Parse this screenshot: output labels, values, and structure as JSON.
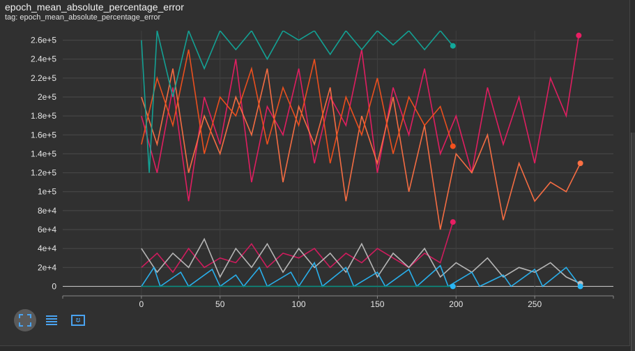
{
  "header": {
    "title": "epoch_mean_absolute_percentage_error",
    "tag": "tag: epoch_mean_absolute_percentage_error"
  },
  "toolbar": {
    "buttons": [
      {
        "name": "fit-domain-button",
        "icon": "fullscreen-icon"
      },
      {
        "name": "toggle-log-button",
        "icon": "list-icon"
      },
      {
        "name": "select-region-button",
        "icon": "dashed-rect-icon"
      }
    ]
  },
  "chart_data": {
    "type": "line",
    "title": "",
    "xlabel": "",
    "ylabel": "",
    "xlim": [
      -50,
      300
    ],
    "ylim": [
      -10000,
      270000
    ],
    "x_ticks": [
      0,
      50,
      100,
      150,
      200,
      250
    ],
    "x_tick_labels": [
      "0",
      "50",
      "100",
      "150",
      "200",
      "250"
    ],
    "y_ticks": [
      0,
      20000,
      40000,
      60000,
      80000,
      100000,
      120000,
      140000,
      160000,
      180000,
      200000,
      220000,
      240000,
      260000
    ],
    "y_tick_labels": [
      "0",
      "2e+4",
      "4e+4",
      "6e+4",
      "8e+4",
      "1e+5",
      "1.2e+5",
      "1.4e+5",
      "1.6e+5",
      "1.8e+5",
      "2e+5",
      "2.2e+5",
      "2.4e+5",
      "2.6e+5"
    ],
    "grid": true,
    "series": [
      {
        "color": "#e91e63",
        "points": [
          [
            0,
            180000
          ],
          [
            10,
            120000
          ],
          [
            20,
            210000
          ],
          [
            30,
            90000
          ],
          [
            40,
            200000
          ],
          [
            50,
            150000
          ],
          [
            60,
            240000
          ],
          [
            70,
            110000
          ],
          [
            80,
            190000
          ],
          [
            90,
            160000
          ],
          [
            100,
            230000
          ],
          [
            110,
            130000
          ],
          [
            120,
            200000
          ],
          [
            130,
            170000
          ],
          [
            140,
            250000
          ],
          [
            150,
            120000
          ],
          [
            160,
            210000
          ],
          [
            170,
            160000
          ],
          [
            180,
            230000
          ],
          [
            190,
            140000
          ],
          [
            200,
            180000
          ],
          [
            210,
            120000
          ],
          [
            220,
            210000
          ],
          [
            230,
            150000
          ],
          [
            240,
            200000
          ],
          [
            250,
            130000
          ],
          [
            260,
            220000
          ],
          [
            270,
            180000
          ],
          [
            278,
            265000
          ]
        ]
      },
      {
        "color": "#ff7043",
        "points": [
          [
            0,
            200000
          ],
          [
            10,
            150000
          ],
          [
            20,
            230000
          ],
          [
            30,
            120000
          ],
          [
            40,
            180000
          ],
          [
            50,
            140000
          ],
          [
            60,
            200000
          ],
          [
            70,
            160000
          ],
          [
            80,
            230000
          ],
          [
            90,
            110000
          ],
          [
            100,
            190000
          ],
          [
            110,
            150000
          ],
          [
            120,
            210000
          ],
          [
            130,
            90000
          ],
          [
            140,
            180000
          ],
          [
            150,
            130000
          ],
          [
            160,
            200000
          ],
          [
            170,
            100000
          ],
          [
            180,
            170000
          ],
          [
            190,
            60000
          ],
          [
            200,
            140000
          ],
          [
            210,
            120000
          ],
          [
            220,
            160000
          ],
          [
            230,
            70000
          ],
          [
            240,
            130000
          ],
          [
            250,
            90000
          ],
          [
            260,
            110000
          ],
          [
            270,
            100000
          ],
          [
            279,
            130000
          ]
        ]
      },
      {
        "color": "#f4511e",
        "points": [
          [
            0,
            150000
          ],
          [
            10,
            220000
          ],
          [
            20,
            170000
          ],
          [
            30,
            250000
          ],
          [
            40,
            140000
          ],
          [
            50,
            200000
          ],
          [
            60,
            180000
          ],
          [
            70,
            230000
          ],
          [
            80,
            150000
          ],
          [
            90,
            210000
          ],
          [
            100,
            170000
          ],
          [
            110,
            240000
          ],
          [
            120,
            130000
          ],
          [
            130,
            200000
          ],
          [
            140,
            160000
          ],
          [
            150,
            220000
          ],
          [
            160,
            140000
          ],
          [
            170,
            200000
          ],
          [
            180,
            170000
          ],
          [
            190,
            190000
          ],
          [
            198,
            148000
          ]
        ]
      },
      {
        "color": "#12a89a",
        "points": [
          [
            0,
            260000
          ],
          [
            5,
            120000
          ],
          [
            10,
            270000
          ],
          [
            20,
            200000
          ],
          [
            30,
            270000
          ],
          [
            40,
            230000
          ],
          [
            50,
            270000
          ],
          [
            60,
            250000
          ],
          [
            70,
            270000
          ],
          [
            80,
            240000
          ],
          [
            90,
            270000
          ],
          [
            100,
            260000
          ],
          [
            110,
            270000
          ],
          [
            120,
            245000
          ],
          [
            130,
            270000
          ],
          [
            140,
            250000
          ],
          [
            150,
            270000
          ],
          [
            160,
            255000
          ],
          [
            170,
            270000
          ],
          [
            180,
            250000
          ],
          [
            190,
            270000
          ],
          [
            198,
            254000
          ]
        ]
      },
      {
        "color": "#d81b60",
        "points": [
          [
            0,
            20000
          ],
          [
            10,
            35000
          ],
          [
            20,
            15000
          ],
          [
            30,
            40000
          ],
          [
            40,
            20000
          ],
          [
            50,
            30000
          ],
          [
            60,
            25000
          ],
          [
            70,
            45000
          ],
          [
            80,
            20000
          ],
          [
            90,
            35000
          ],
          [
            100,
            30000
          ],
          [
            110,
            40000
          ],
          [
            120,
            20000
          ],
          [
            130,
            35000
          ],
          [
            140,
            25000
          ],
          [
            150,
            40000
          ],
          [
            160,
            30000
          ],
          [
            170,
            20000
          ],
          [
            180,
            35000
          ],
          [
            190,
            25000
          ],
          [
            198,
            68000
          ]
        ]
      },
      {
        "color": "#bdbdbd",
        "points": [
          [
            0,
            40000
          ],
          [
            10,
            15000
          ],
          [
            20,
            35000
          ],
          [
            30,
            20000
          ],
          [
            40,
            50000
          ],
          [
            50,
            10000
          ],
          [
            60,
            40000
          ],
          [
            70,
            20000
          ],
          [
            80,
            45000
          ],
          [
            90,
            15000
          ],
          [
            100,
            40000
          ],
          [
            110,
            20000
          ],
          [
            120,
            35000
          ],
          [
            130,
            15000
          ],
          [
            140,
            45000
          ],
          [
            150,
            10000
          ],
          [
            160,
            35000
          ],
          [
            170,
            20000
          ],
          [
            180,
            40000
          ],
          [
            190,
            10000
          ],
          [
            200,
            25000
          ],
          [
            210,
            15000
          ],
          [
            220,
            30000
          ],
          [
            230,
            10000
          ],
          [
            240,
            20000
          ],
          [
            250,
            15000
          ],
          [
            260,
            25000
          ],
          [
            270,
            10000
          ],
          [
            279,
            3000
          ]
        ]
      },
      {
        "color": "#29b6f6",
        "points": [
          [
            0,
            0
          ],
          [
            8,
            20000
          ],
          [
            12,
            0
          ],
          [
            25,
            15000
          ],
          [
            30,
            0
          ],
          [
            45,
            18000
          ],
          [
            50,
            0
          ],
          [
            60,
            12000
          ],
          [
            65,
            0
          ],
          [
            75,
            20000
          ],
          [
            80,
            0
          ],
          [
            95,
            15000
          ],
          [
            100,
            0
          ],
          [
            110,
            25000
          ],
          [
            115,
            0
          ],
          [
            130,
            20000
          ],
          [
            135,
            0
          ],
          [
            150,
            15000
          ],
          [
            155,
            0
          ],
          [
            170,
            18000
          ],
          [
            175,
            0
          ],
          [
            190,
            22000
          ],
          [
            195,
            0
          ],
          [
            210,
            15000
          ],
          [
            215,
            0
          ],
          [
            230,
            12000
          ],
          [
            235,
            0
          ],
          [
            250,
            18000
          ],
          [
            255,
            0
          ],
          [
            270,
            20000
          ],
          [
            279,
            0
          ]
        ]
      },
      {
        "color": "#00897b",
        "points": [
          [
            0,
            0
          ],
          [
            30,
            0
          ],
          [
            60,
            0
          ],
          [
            100,
            0
          ],
          [
            140,
            0
          ],
          [
            198,
            0
          ]
        ]
      }
    ],
    "endpoints": [
      {
        "x": 198,
        "y": 254000,
        "color": "#12a89a"
      },
      {
        "x": 198,
        "y": 148000,
        "color": "#f4511e"
      },
      {
        "x": 198,
        "y": 68000,
        "color": "#e91e63"
      },
      {
        "x": 198,
        "y": 0,
        "color": "#29b6f6"
      },
      {
        "x": 278,
        "y": 265000,
        "color": "#e91e63"
      },
      {
        "x": 279,
        "y": 130000,
        "color": "#ff7043"
      },
      {
        "x": 279,
        "y": 3000,
        "color": "#bdbdbd"
      },
      {
        "x": 279,
        "y": 0,
        "color": "#29b6f6"
      }
    ]
  }
}
